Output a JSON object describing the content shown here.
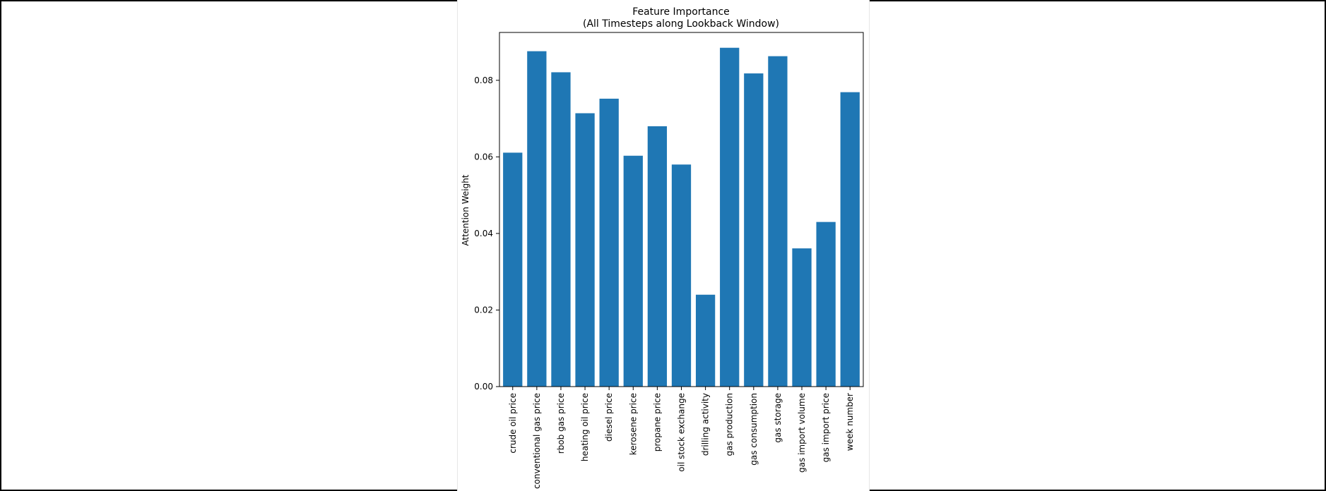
{
  "chart_data": {
    "type": "bar",
    "title": "Feature Importance",
    "subtitle": "(All Timesteps along Lookback Window)",
    "xlabel": "",
    "ylabel": "Attention Weight",
    "ylim": [
      0,
      0.0925
    ],
    "yticks": [
      0.0,
      0.02,
      0.04,
      0.06,
      0.08
    ],
    "ytick_labels": [
      "0.00",
      "0.02",
      "0.04",
      "0.06",
      "0.08"
    ],
    "grid": false,
    "bar_color": "#1f77b4",
    "categories": [
      "crude oil price",
      "conventional gas price",
      "rbob gas price",
      "heating oil price",
      "diesel price",
      "kerosene price",
      "propane price",
      "oil stock exchange",
      "drilling activity",
      "gas production",
      "gas consumption",
      "gas storage",
      "gas import volume",
      "gas import price",
      "week number"
    ],
    "values": [
      0.0611,
      0.0876,
      0.0821,
      0.0714,
      0.0752,
      0.0603,
      0.068,
      0.058,
      0.024,
      0.0885,
      0.0818,
      0.0863,
      0.0361,
      0.043,
      0.0769
    ]
  }
}
